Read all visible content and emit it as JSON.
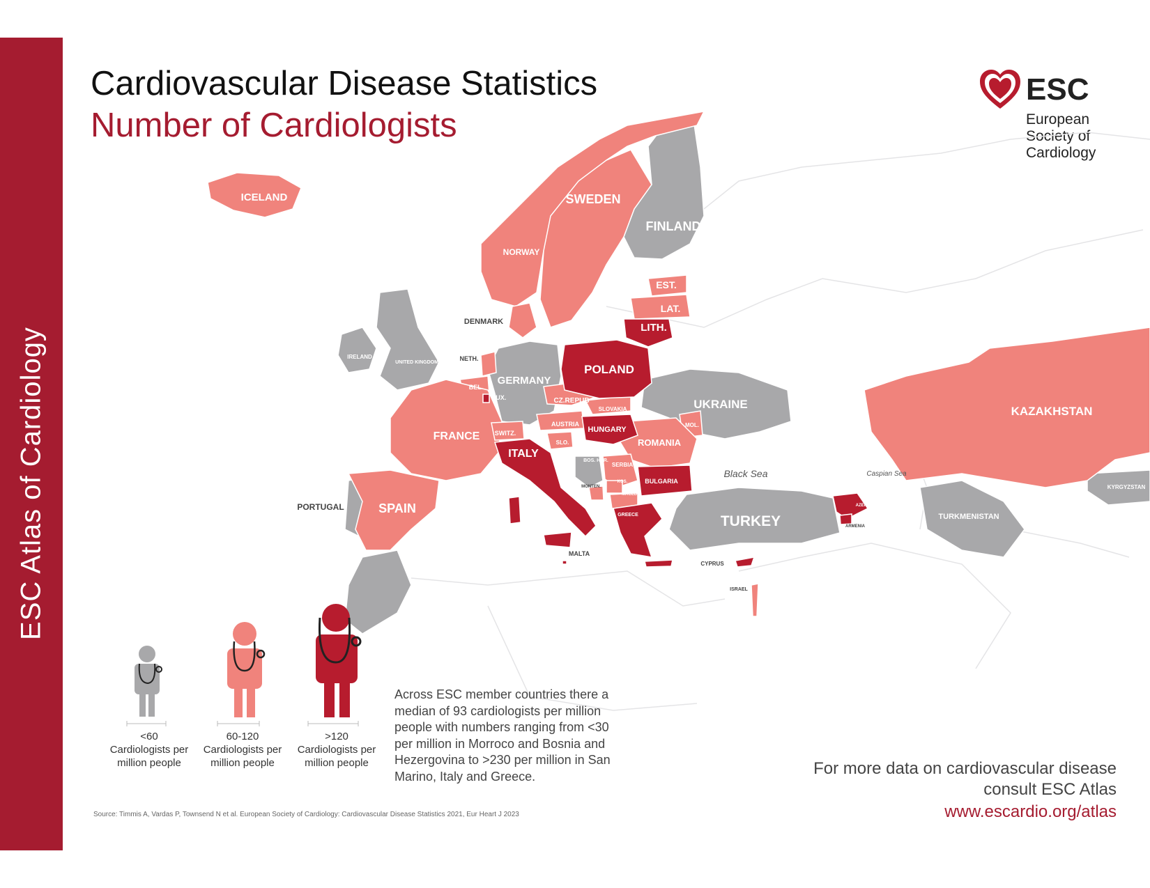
{
  "header": {
    "title": "Cardiovascular Disease Statistics",
    "subtitle": "Number of Cardiologists"
  },
  "sidebar": {
    "text": "ESC Atlas of Cardiology"
  },
  "logo": {
    "acronym": "ESC",
    "name": "European Society of Cardiology"
  },
  "colors": {
    "low": "#a8a8aa",
    "mid": "#f0837c",
    "high": "#b71c2e",
    "brand": "#a51c30"
  },
  "map": {
    "seas": [
      "Black Sea",
      "Caspian Sea"
    ],
    "countries": [
      {
        "name": "ICELAND",
        "category": "60-120"
      },
      {
        "name": "NORWAY",
        "category": "60-120"
      },
      {
        "name": "SWEDEN",
        "category": "60-120"
      },
      {
        "name": "FINLAND",
        "category": "<60"
      },
      {
        "name": "DENMARK",
        "category": "60-120"
      },
      {
        "name": "EST.",
        "category": "60-120"
      },
      {
        "name": "LAT.",
        "category": "60-120"
      },
      {
        "name": "LITH.",
        "category": ">120"
      },
      {
        "name": "IRELAND",
        "category": "<60"
      },
      {
        "name": "UNITED KINGDOM",
        "category": "<60"
      },
      {
        "name": "NETH.",
        "category": "60-120"
      },
      {
        "name": "BEL.",
        "category": "60-120"
      },
      {
        "name": "LUX.",
        "category": ">120"
      },
      {
        "name": "GERMANY",
        "category": "<60"
      },
      {
        "name": "POLAND",
        "category": ">120"
      },
      {
        "name": "CZ.REPUB",
        "category": "60-120"
      },
      {
        "name": "SLOVAKIA",
        "category": "60-120"
      },
      {
        "name": "AUSTRIA",
        "category": "60-120"
      },
      {
        "name": "HUNGARY",
        "category": ">120"
      },
      {
        "name": "SWITZ.",
        "category": "60-120"
      },
      {
        "name": "SLO.",
        "category": "60-120"
      },
      {
        "name": "FRANCE",
        "category": "60-120"
      },
      {
        "name": "ITALY",
        "category": ">120"
      },
      {
        "name": "SPAIN",
        "category": "60-120"
      },
      {
        "name": "PORTUGAL",
        "category": "<60"
      },
      {
        "name": "UKRAINE",
        "category": "<60"
      },
      {
        "name": "MOL.",
        "category": "60-120"
      },
      {
        "name": "ROMANIA",
        "category": "60-120"
      },
      {
        "name": "BOS. HER.",
        "category": "<60"
      },
      {
        "name": "SERBIA",
        "category": "60-120"
      },
      {
        "name": "MONTEN.",
        "category": "60-120"
      },
      {
        "name": "KOS.",
        "category": "60-120"
      },
      {
        "name": "MACED.",
        "category": "60-120"
      },
      {
        "name": "BULGARIA",
        "category": ">120"
      },
      {
        "name": "GREECE",
        "category": ">120"
      },
      {
        "name": "MALTA",
        "category": ">120"
      },
      {
        "name": "TURKEY",
        "category": "<60"
      },
      {
        "name": "CYPRUS",
        "category": ">120"
      },
      {
        "name": "ISRAEL",
        "category": "60-120"
      },
      {
        "name": "AZERBAIJAN",
        "category": ">120"
      },
      {
        "name": "ARMENIA",
        "category": ">120"
      },
      {
        "name": "KAZAKHSTAN",
        "category": "60-120"
      },
      {
        "name": "TURKMENISTAN",
        "category": "<60"
      },
      {
        "name": "KYRGYZSTAN",
        "category": "<60"
      }
    ]
  },
  "legend": {
    "items": [
      {
        "range": "<60",
        "text": "Cardiologists per million people"
      },
      {
        "range": "60-120",
        "text": "Cardiologists per million people"
      },
      {
        "range": ">120",
        "text": "Cardiologists per million people"
      }
    ]
  },
  "note": "Across ESC member countries there a median of 93 cardiologists per million people with numbers ranging from <30 per million in Morroco and Bosnia and Hezergovina to >230 per million in San Marino, Italy and Greece.",
  "footer": {
    "more_line1": "For more data on cardiovascular disease",
    "more_line2": "consult ESC Atlas",
    "url": "www.escardio.org/atlas",
    "source": "Source: Timmis A, Vardas P, Townsend N et al. European Society of Cardiology: Cardiovascular Disease Statistics 2021, Eur Heart J 2023"
  }
}
